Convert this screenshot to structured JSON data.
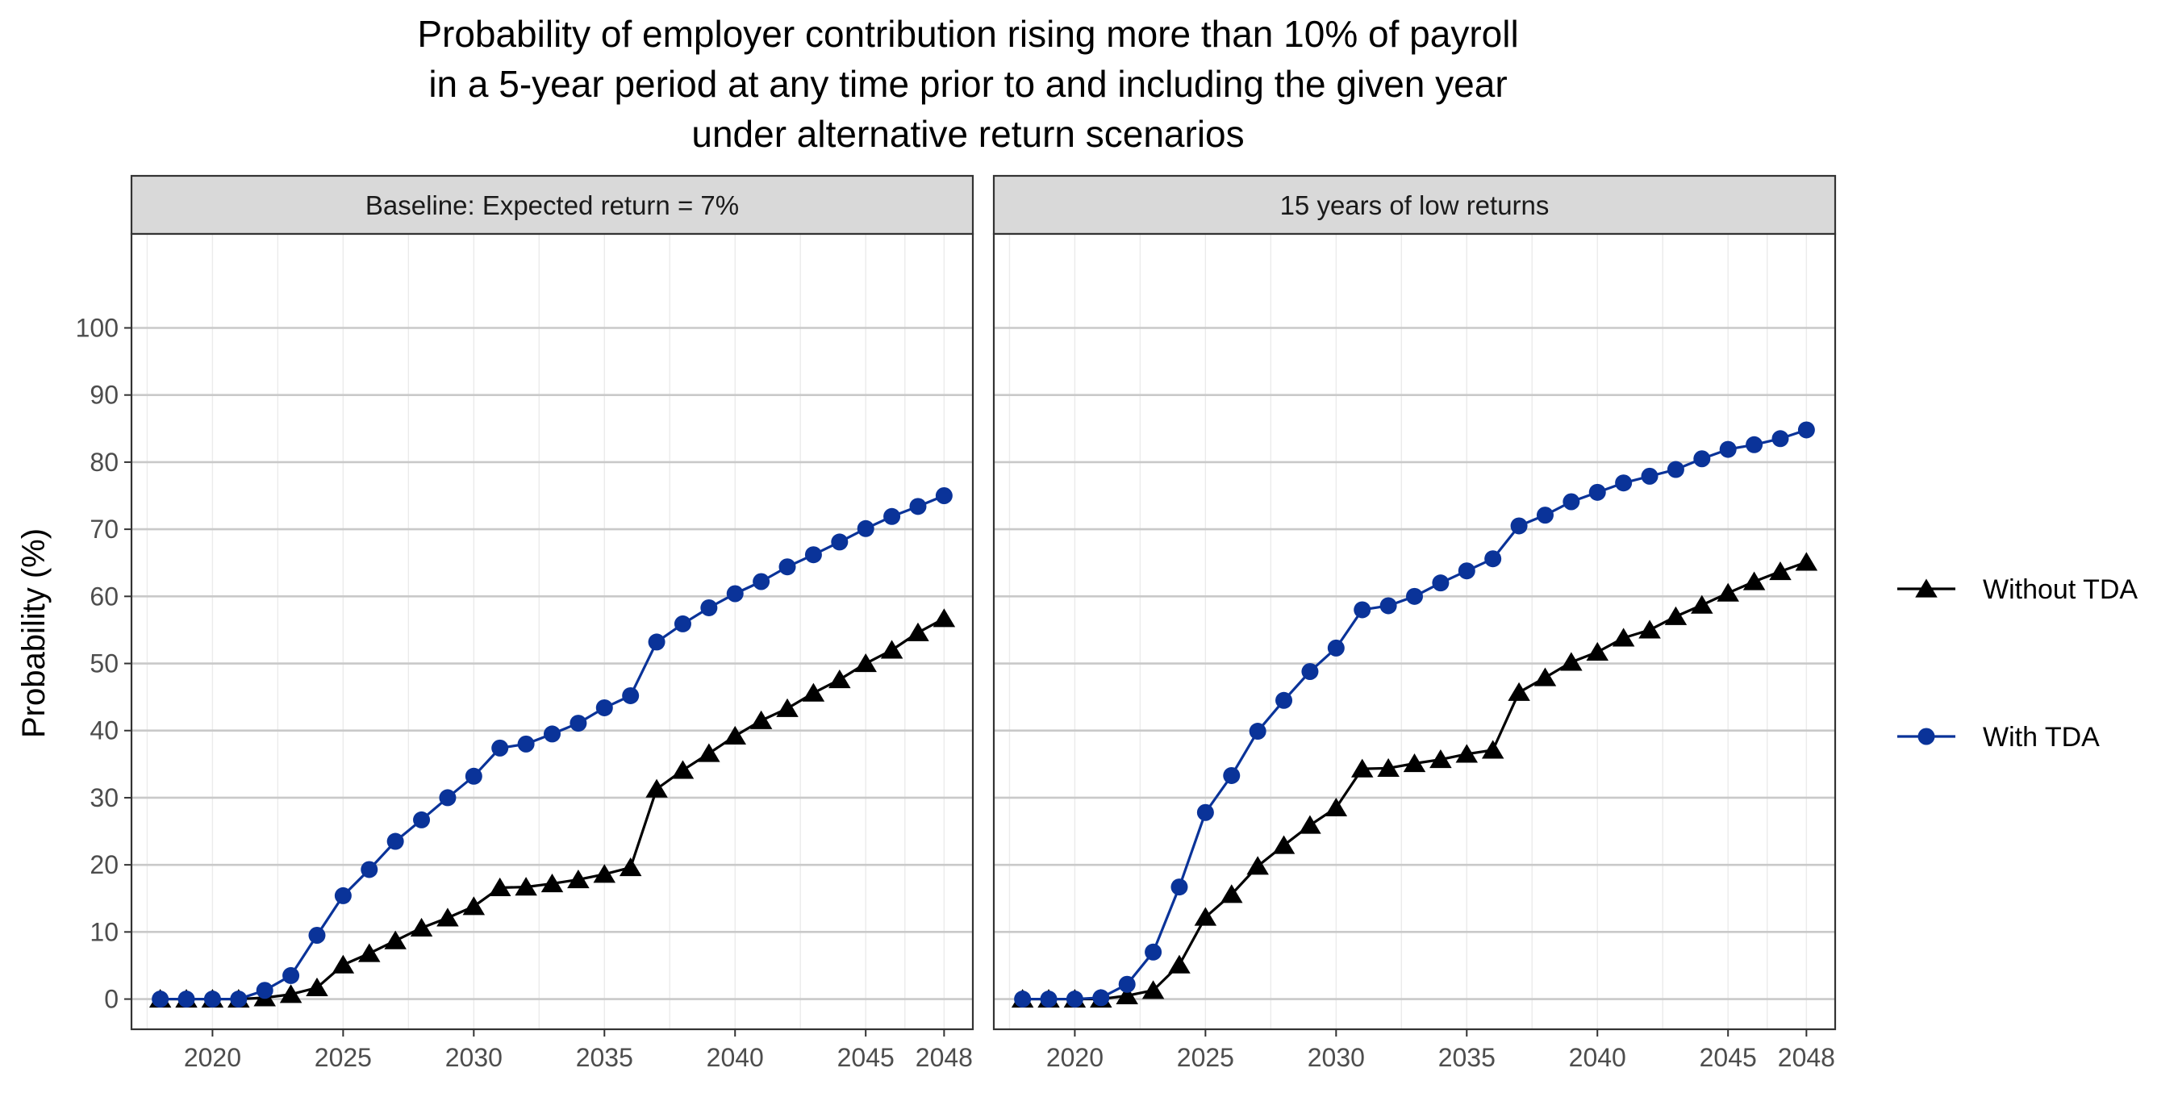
{
  "chart_data": {
    "type": "line",
    "title_lines": [
      "Probability of employer contribution rising more than 10% of payroll",
      "in a 5-year period at any time prior to and including the given year",
      "under alternative return scenarios"
    ],
    "ylabel": "Probability (%)",
    "xlabel": "",
    "x": [
      2018,
      2019,
      2020,
      2021,
      2022,
      2023,
      2024,
      2025,
      2026,
      2027,
      2028,
      2029,
      2030,
      2031,
      2032,
      2033,
      2034,
      2035,
      2036,
      2037,
      2038,
      2039,
      2040,
      2041,
      2042,
      2043,
      2044,
      2045,
      2046,
      2047,
      2048
    ],
    "xlim": [
      2016.9,
      2049.1
    ],
    "ylim": [
      -4.5,
      114
    ],
    "x_ticks": [
      2020,
      2025,
      2030,
      2035,
      2040,
      2045,
      2048
    ],
    "y_ticks": [
      0,
      10,
      20,
      30,
      40,
      50,
      60,
      70,
      80,
      90,
      100
    ],
    "grid": true,
    "legend_position": "right",
    "legend": [
      {
        "label": "Without TDA",
        "color": "#000000",
        "marker": "triangle"
      },
      {
        "label": "With TDA",
        "color": "#0a3399",
        "marker": "circle"
      }
    ],
    "panels": [
      {
        "strip": "Baseline: Expected return = 7%",
        "series": [
          {
            "name": "Without TDA",
            "values": [
              0,
              0,
              0,
              0,
              0.2,
              0.7,
              1.7,
              5.1,
              6.8,
              8.7,
              10.6,
              12.1,
              13.8,
              16.6,
              16.7,
              17.2,
              17.8,
              18.6,
              19.6,
              31.3,
              34.1,
              36.6,
              39.2,
              41.5,
              43.3,
              45.6,
              47.6,
              50.0,
              52.0,
              54.6,
              56.7
            ]
          },
          {
            "name": "With TDA",
            "values": [
              0,
              0,
              0,
              0,
              1.3,
              3.5,
              9.5,
              15.4,
              19.3,
              23.5,
              26.7,
              30.0,
              33.2,
              37.4,
              38.0,
              39.5,
              41.1,
              43.4,
              45.2,
              53.2,
              55.9,
              58.3,
              60.4,
              62.2,
              64.4,
              66.2,
              68.1,
              70.1,
              71.9,
              73.4,
              75.0
            ]
          }
        ]
      },
      {
        "strip": "15 years of low returns",
        "series": [
          {
            "name": "Without TDA",
            "values": [
              0,
              0,
              0,
              0,
              0.5,
              1.3,
              5.1,
              12.2,
              15.6,
              19.8,
              22.9,
              25.9,
              28.5,
              34.3,
              34.4,
              35.1,
              35.7,
              36.5,
              37.1,
              45.7,
              47.9,
              50.2,
              51.7,
              53.8,
              55.0,
              57.0,
              58.7,
              60.5,
              62.2,
              63.7,
              65.1
            ]
          },
          {
            "name": "With TDA",
            "values": [
              0,
              0,
              0,
              0.2,
              2.2,
              7.0,
              16.7,
              27.8,
              33.3,
              39.9,
              44.5,
              48.8,
              52.3,
              58.0,
              58.6,
              60.0,
              62.0,
              63.8,
              65.6,
              70.5,
              72.1,
              74.1,
              75.5,
              76.9,
              77.9,
              78.9,
              80.5,
              81.9,
              82.6,
              83.5,
              84.8
            ]
          }
        ]
      }
    ]
  }
}
